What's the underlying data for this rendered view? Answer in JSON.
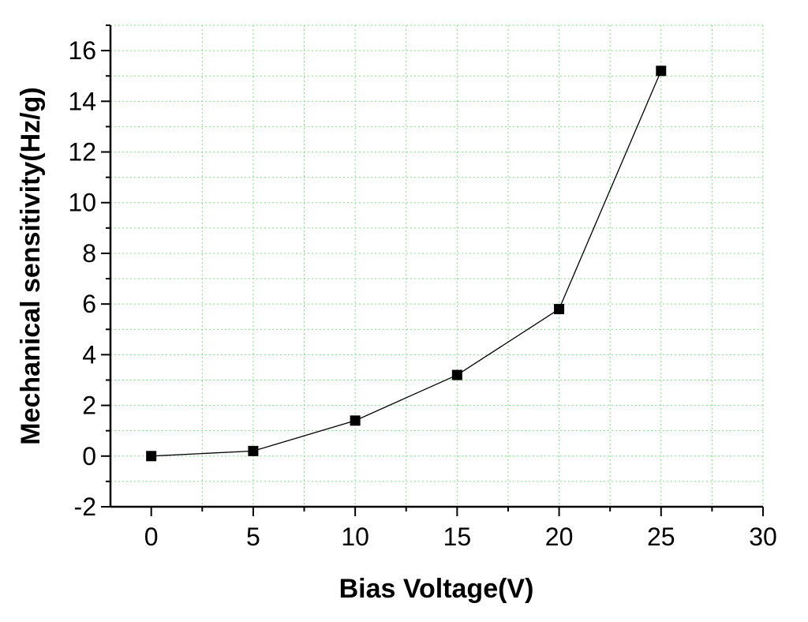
{
  "chart_data": {
    "type": "line",
    "title": "",
    "xlabel": "Bias Voltage(V)",
    "ylabel": "Mechanical sensitivity(Hz/g)",
    "xlim": [
      -2,
      30
    ],
    "ylim": [
      -2,
      17
    ],
    "x_ticks": [
      0,
      5,
      10,
      15,
      20,
      25,
      30
    ],
    "y_ticks": [
      -2,
      0,
      2,
      4,
      6,
      8,
      10,
      12,
      14,
      16
    ],
    "grid": true,
    "grid_color": "#7fe07f",
    "line_color": "#000000",
    "marker": "square",
    "series": [
      {
        "x": [
          0,
          5,
          10,
          15,
          20,
          25
        ],
        "y": [
          0.0,
          0.2,
          1.4,
          3.2,
          5.8,
          15.2
        ]
      }
    ]
  }
}
